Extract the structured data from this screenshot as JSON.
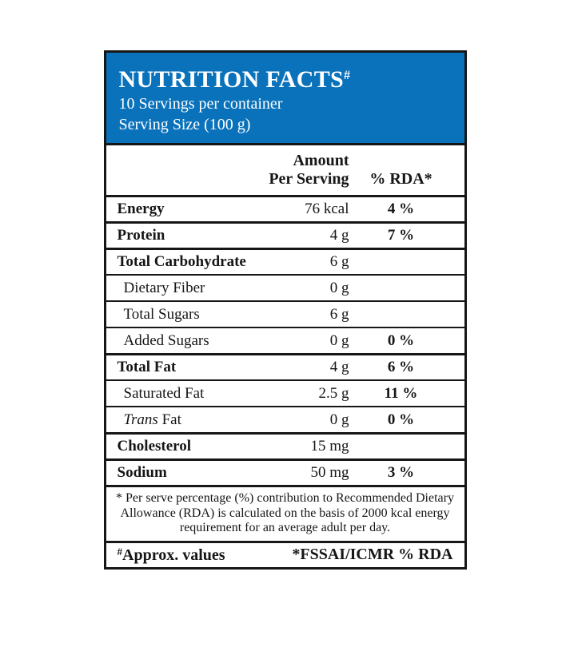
{
  "label": {
    "accent_color": "#0a72bb",
    "border_color": "#161616",
    "title": "NUTRITION FACTS",
    "title_sup": "#",
    "servings_line": "10 Servings per container",
    "serving_size_line": "Serving Size (100 g)",
    "columns": {
      "amount_header_line1": "Amount",
      "amount_header_line2": "Per Serving",
      "rda_header": "% RDA*"
    },
    "rows": [
      {
        "name": "Energy",
        "amount": "76 kcal",
        "rda": "4 %",
        "bold": true,
        "major": true,
        "indent": false
      },
      {
        "name": "Protein",
        "amount": "4 g",
        "rda": "7 %",
        "bold": true,
        "major": true,
        "indent": false
      },
      {
        "name": "Total Carbohydrate",
        "amount": "6 g",
        "rda": "",
        "bold": true,
        "major": true,
        "indent": false
      },
      {
        "name": "Dietary Fiber",
        "amount": "0 g",
        "rda": "",
        "bold": false,
        "major": false,
        "indent": true
      },
      {
        "name": "Total Sugars",
        "amount": "6 g",
        "rda": "",
        "bold": false,
        "major": false,
        "indent": true
      },
      {
        "name": "Added Sugars",
        "amount": "0 g",
        "rda": "0 %",
        "bold": false,
        "major": false,
        "indent": true
      },
      {
        "name": "Total Fat",
        "amount": "4 g",
        "rda": "6 %",
        "bold": true,
        "major": true,
        "indent": false
      },
      {
        "name": "Saturated Fat",
        "amount": "2.5 g",
        "rda": "11 %",
        "bold": false,
        "major": false,
        "indent": true
      },
      {
        "name": "Trans Fat",
        "amount": "0 g",
        "rda": "0 %",
        "bold": false,
        "major": false,
        "indent": true,
        "italic_word": "Trans"
      },
      {
        "name": "Cholesterol",
        "amount": "15 mg",
        "rda": "",
        "bold": true,
        "major": true,
        "indent": false
      },
      {
        "name": "Sodium",
        "amount": "50 mg",
        "rda": "3 %",
        "bold": true,
        "major": true,
        "indent": false
      }
    ],
    "footnote": "* Per serve percentage (%) contribution to Recommended Dietary Allowance (RDA) is calculated on the basis of 2000 kcal energy requirement for an average adult per day.",
    "footer_left_sup": "#",
    "footer_left": "Approx. values",
    "footer_right": "*FSSAI/ICMR % RDA"
  }
}
